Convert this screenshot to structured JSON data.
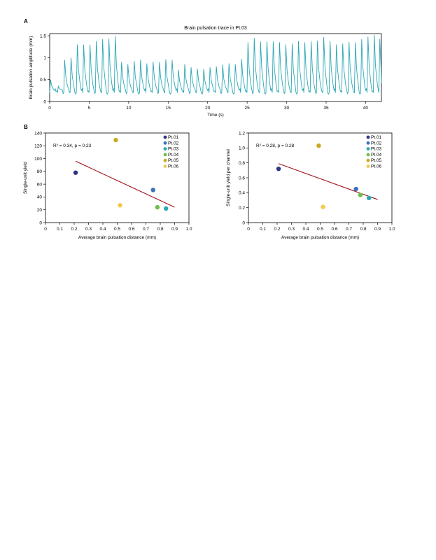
{
  "panels": {
    "a": "A",
    "b": "B"
  },
  "chart_data": [
    {
      "type": "line",
      "title": "Brain pulsation trace in Pt.03",
      "xlabel": "Time (s)",
      "ylabel": "Brain pulsation amplitude (mm)",
      "xlim": [
        0,
        42
      ],
      "ylim": [
        0,
        1.55
      ],
      "xticks": [
        "0",
        "5",
        "10",
        "15",
        "20",
        "25",
        "30",
        "35",
        "40"
      ],
      "yticks": [
        "0",
        "0.5",
        "1",
        "1.5"
      ],
      "trace": {
        "color": "#2aa7b4",
        "baseline": 0.25,
        "peaks": [
          {
            "t": 0.1,
            "a": 0.5
          },
          {
            "t": 1.1,
            "a": 0.35
          },
          {
            "t": 1.9,
            "a": 0.95
          },
          {
            "t": 2.7,
            "a": 1.0
          },
          {
            "t": 3.5,
            "a": 1.3
          },
          {
            "t": 4.3,
            "a": 1.3
          },
          {
            "t": 5.1,
            "a": 1.3
          },
          {
            "t": 5.9,
            "a": 1.38
          },
          {
            "t": 6.7,
            "a": 1.42
          },
          {
            "t": 7.5,
            "a": 1.43
          },
          {
            "t": 8.3,
            "a": 1.49
          },
          {
            "t": 9.1,
            "a": 0.9
          },
          {
            "t": 9.9,
            "a": 0.85
          },
          {
            "t": 10.7,
            "a": 0.92
          },
          {
            "t": 11.5,
            "a": 0.95
          },
          {
            "t": 12.3,
            "a": 0.87
          },
          {
            "t": 13.1,
            "a": 0.91
          },
          {
            "t": 13.9,
            "a": 0.9
          },
          {
            "t": 14.7,
            "a": 0.96
          },
          {
            "t": 15.5,
            "a": 0.95
          },
          {
            "t": 16.3,
            "a": 0.72
          },
          {
            "t": 17.1,
            "a": 0.85
          },
          {
            "t": 17.9,
            "a": 0.78
          },
          {
            "t": 18.7,
            "a": 0.75
          },
          {
            "t": 19.5,
            "a": 0.74
          },
          {
            "t": 20.3,
            "a": 0.78
          },
          {
            "t": 21.1,
            "a": 0.8
          },
          {
            "t": 21.9,
            "a": 0.84
          },
          {
            "t": 22.7,
            "a": 0.87
          },
          {
            "t": 23.5,
            "a": 0.85
          },
          {
            "t": 24.3,
            "a": 0.97
          },
          {
            "t": 25.1,
            "a": 1.35
          },
          {
            "t": 25.9,
            "a": 1.45
          },
          {
            "t": 26.7,
            "a": 1.37
          },
          {
            "t": 27.5,
            "a": 1.37
          },
          {
            "t": 28.3,
            "a": 1.37
          },
          {
            "t": 29.1,
            "a": 1.35
          },
          {
            "t": 29.9,
            "a": 1.3
          },
          {
            "t": 30.7,
            "a": 1.32
          },
          {
            "t": 31.5,
            "a": 1.38
          },
          {
            "t": 32.3,
            "a": 1.35
          },
          {
            "t": 33.1,
            "a": 1.37
          },
          {
            "t": 33.9,
            "a": 1.39
          },
          {
            "t": 34.7,
            "a": 1.47
          },
          {
            "t": 35.5,
            "a": 1.38
          },
          {
            "t": 36.3,
            "a": 1.3
          },
          {
            "t": 37.1,
            "a": 1.32
          },
          {
            "t": 37.9,
            "a": 1.36
          },
          {
            "t": 38.7,
            "a": 1.35
          },
          {
            "t": 39.5,
            "a": 1.42
          },
          {
            "t": 40.3,
            "a": 1.48
          },
          {
            "t": 41.1,
            "a": 1.52
          },
          {
            "t": 41.8,
            "a": 1.43
          }
        ]
      }
    },
    {
      "type": "scatter",
      "annotation": "R² = 0.34, p = 0.23",
      "xlabel": "Average brain pulsation distance (mm)",
      "ylabel": "Single-unit yield",
      "xlim": [
        0,
        1.0
      ],
      "ylim": [
        0,
        140
      ],
      "xticks": [
        "0",
        "0.1",
        "0.2",
        "0.3",
        "0.4",
        "0.5",
        "0.6",
        "0.7",
        "0.8",
        "0.9",
        "1.0"
      ],
      "yticks": [
        "0",
        "20",
        "40",
        "60",
        "80",
        "100",
        "120",
        "140"
      ],
      "points": [
        {
          "name": "Pt.01",
          "x": 0.21,
          "y": 78,
          "color": "#2e3580"
        },
        {
          "name": "Pt.02",
          "x": 0.75,
          "y": 51,
          "color": "#3a72c0"
        },
        {
          "name": "Pt.03",
          "x": 0.84,
          "y": 22,
          "color": "#2aa7b4"
        },
        {
          "name": "Pt.04",
          "x": 0.78,
          "y": 24,
          "color": "#6cbf4a"
        },
        {
          "name": "Pt.05",
          "x": 0.49,
          "y": 129,
          "color": "#c9a91f"
        },
        {
          "name": "Pt.06",
          "x": 0.52,
          "y": 27,
          "color": "#f2c94c"
        }
      ],
      "fit": {
        "x": [
          0.21,
          0.9
        ],
        "y": [
          96,
          24
        ],
        "color": "#a0101c"
      }
    },
    {
      "type": "scatter",
      "annotation": "R² = 0.28, p = 0.28",
      "xlabel": "Average brain pulsation distance (mm)",
      "ylabel": "Single-unit yield per channel",
      "xlim": [
        0,
        1.0
      ],
      "ylim": [
        0,
        1.2
      ],
      "xticks": [
        "0",
        "0.1",
        "0.2",
        "0.3",
        "0.4",
        "0.5",
        "0.6",
        "0.7",
        "0.8",
        "0.9",
        "1.0"
      ],
      "yticks": [
        "0",
        "0.2",
        "0.4",
        "0.6",
        "0.8",
        "1.0",
        "1.2"
      ],
      "points": [
        {
          "name": "Pt.01",
          "x": 0.21,
          "y": 0.72,
          "color": "#2e3580"
        },
        {
          "name": "Pt.02",
          "x": 0.75,
          "y": 0.45,
          "color": "#3a72c0"
        },
        {
          "name": "Pt.03",
          "x": 0.84,
          "y": 0.33,
          "color": "#2aa7b4"
        },
        {
          "name": "Pt.04",
          "x": 0.78,
          "y": 0.37,
          "color": "#6cbf4a"
        },
        {
          "name": "Pt.05",
          "x": 0.49,
          "y": 1.03,
          "color": "#c9a91f"
        },
        {
          "name": "Pt.06",
          "x": 0.52,
          "y": 0.21,
          "color": "#f2c94c"
        }
      ],
      "fit": {
        "x": [
          0.21,
          0.9
        ],
        "y": [
          0.79,
          0.31
        ],
        "color": "#a0101c"
      }
    }
  ]
}
